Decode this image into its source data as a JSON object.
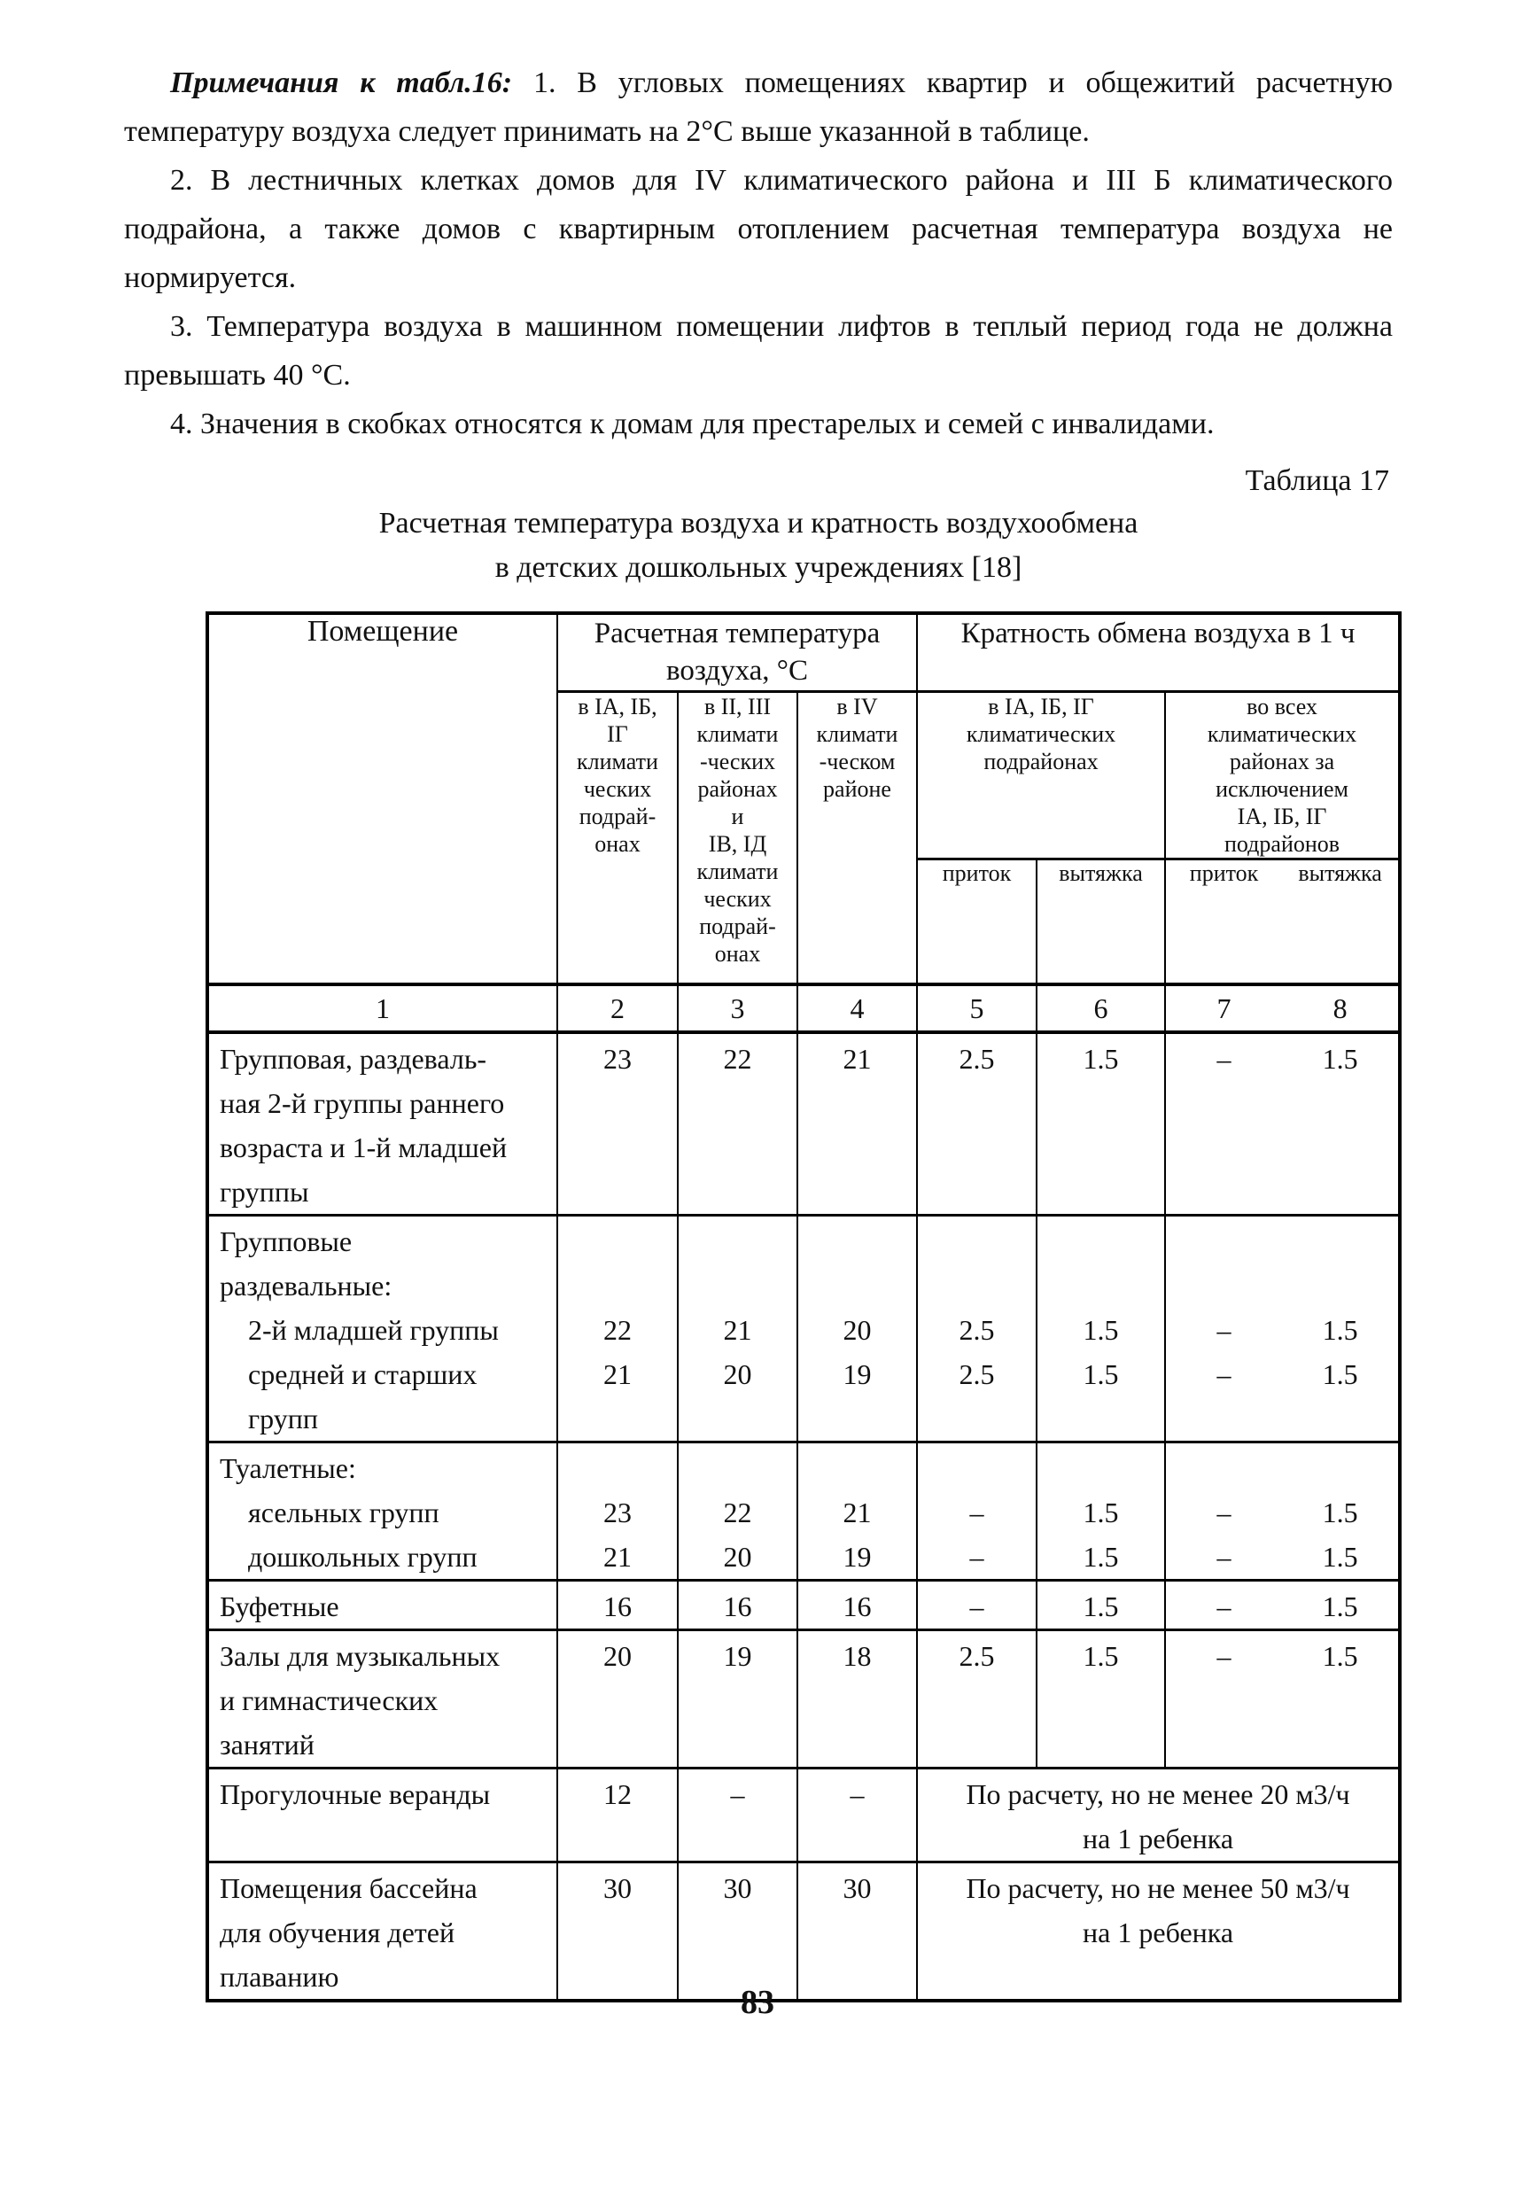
{
  "ink_color": "#111111",
  "paper_color": "#ffffff",
  "page_number": "83",
  "notes": {
    "lead": "Примечания к табл.16:",
    "items": [
      "1. В угловых помещениях квартир и общежитий расчетную температуру воздуха следует принимать на 2°С выше указанной в таблице.",
      "2. В лестничных клетках домов для IV климатического района и III Б климатического подрайона, а также домов с квартирным отоплением расчетная температура воздуха не нормируется.",
      "3. Температура воздуха в машинном помещении лифтов в теплый период года не должна превышать 40 °С.",
      "4. Значения в скобках относятся к домам для престарелых и семей с инвалидами."
    ]
  },
  "table17": {
    "label": "Таблица 17",
    "title_line1": "Расчетная температура воздуха и кратность воздухообмена",
    "title_line2": "в детских дошкольных учреждениях [18]",
    "header": {
      "room": "Помещение",
      "temp_lines": [
        "Расчетная температура",
        "воздуха, °С"
      ],
      "exch_title": "Кратность обмена воздуха в 1 ч",
      "col2_lines": [
        "в IA, IБ,",
        "IГ",
        "климати",
        "ческих",
        "подрай-",
        "онах"
      ],
      "col3_lines": [
        "в II, III",
        "климати",
        "-ческих",
        "районах",
        "и",
        "IВ, IД",
        "климати",
        "ческих",
        "подрай-",
        "онах"
      ],
      "col4_lines": [
        "в IV",
        "климати",
        "-ческом",
        "районе"
      ],
      "exch_left_lines": [
        "в IA, IБ, IГ",
        "климатических",
        "подрайонах"
      ],
      "exch_right_lines": [
        "во всех",
        "климатических",
        "районах за",
        "исключением",
        "IA, IБ, IГ",
        "подрайонов"
      ],
      "inflow_label": "приток",
      "exhaust_label": "вытяжка",
      "numbers": [
        "1",
        "2",
        "3",
        "4",
        "5",
        "6",
        "7",
        "8"
      ]
    },
    "rows": [
      {
        "label_lines": [
          "Групповая, раздеваль-",
          "ная 2-й группы раннего",
          "возраста и 1-й младшей",
          "группы"
        ],
        "c2": [
          "23"
        ],
        "c3": [
          "22"
        ],
        "c4": [
          "21"
        ],
        "c5": [
          "2.5"
        ],
        "c6": [
          "1.5"
        ],
        "c7": [
          "–"
        ],
        "c8": [
          "1.5"
        ],
        "note": null
      },
      {
        "label_lines": [
          "Групповые",
          "раздевальные:",
          "    2-й младшей группы",
          "    средней и старших",
          "    групп"
        ],
        "c2": [
          "",
          "",
          "22",
          "21"
        ],
        "c3": [
          "",
          "",
          "21",
          "20"
        ],
        "c4": [
          "",
          "",
          "20",
          "19"
        ],
        "c5": [
          "",
          "",
          "2.5",
          "2.5"
        ],
        "c6": [
          "",
          "",
          "1.5",
          "1.5"
        ],
        "c7": [
          "",
          "",
          "–",
          "–"
        ],
        "c8": [
          "",
          "",
          "1.5",
          "1.5"
        ],
        "note": null
      },
      {
        "label_lines": [
          "Туалетные:",
          "    ясельных групп",
          "    дошкольных групп"
        ],
        "c2": [
          "",
          "23",
          "21"
        ],
        "c3": [
          "",
          "22",
          "20"
        ],
        "c4": [
          "",
          "21",
          "19"
        ],
        "c5": [
          "",
          "–",
          "–"
        ],
        "c6": [
          "",
          "1.5",
          "1.5"
        ],
        "c7": [
          "",
          "–",
          "–"
        ],
        "c8": [
          "",
          "1.5",
          "1.5"
        ],
        "note": null
      },
      {
        "label_lines": [
          "Буфетные"
        ],
        "c2": [
          "16"
        ],
        "c3": [
          "16"
        ],
        "c4": [
          "16"
        ],
        "c5": [
          "–"
        ],
        "c6": [
          "1.5"
        ],
        "c7": [
          "–"
        ],
        "c8": [
          "1.5"
        ],
        "note": null
      },
      {
        "label_lines": [
          "Залы для музыкальных",
          "и гимнастических",
          "занятий"
        ],
        "c2": [
          "20"
        ],
        "c3": [
          "19"
        ],
        "c4": [
          "18"
        ],
        "c5": [
          "2.5"
        ],
        "c6": [
          "1.5"
        ],
        "c7": [
          "–"
        ],
        "c8": [
          "1.5"
        ],
        "note": null
      },
      {
        "label_lines": [
          "Прогулочные веранды"
        ],
        "c2": [
          "12"
        ],
        "c3": [
          "–"
        ],
        "c4": [
          "–"
        ],
        "c5": null,
        "c6": null,
        "c7": null,
        "c8": null,
        "note": [
          "По расчету, но не менее 20 м3/ч",
          "на 1 ребенка"
        ]
      },
      {
        "label_lines": [
          "Помещения бассейна",
          "для обучения детей",
          "плаванию"
        ],
        "c2": [
          "30"
        ],
        "c3": [
          "30"
        ],
        "c4": [
          "30"
        ],
        "c5": null,
        "c6": null,
        "c7": null,
        "c8": null,
        "note": [
          "По расчету, но не менее 50 м3/ч",
          "на 1 ребенка"
        ]
      }
    ]
  }
}
